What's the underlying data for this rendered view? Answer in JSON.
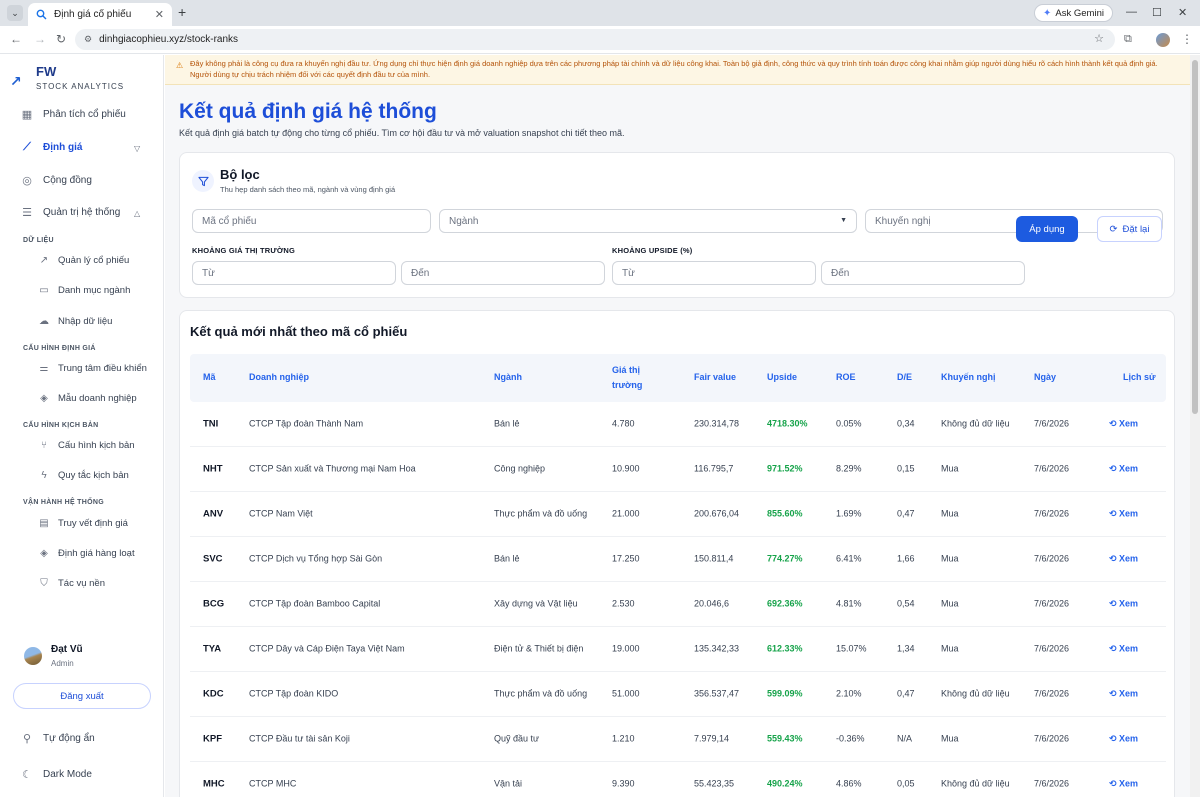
{
  "browser": {
    "tab_title": "Định giá cổ phiếu",
    "url": "dinhgiacophieu.xyz/stock-ranks",
    "ask_gemini": "Ask Gemini"
  },
  "sidebar": {
    "brand": "FW",
    "tagline": "STOCK ANALYTICS",
    "nav": {
      "phan_tich": "Phân tích cổ phiếu",
      "dinh_gia": "Định giá",
      "cong_dong": "Cộng đồng",
      "quan_tri": "Quản trị hệ thống"
    },
    "sections": {
      "du_lieu": "DỮ LIỆU",
      "cau_hinh_dinh_gia": "CẤU HÌNH ĐỊNH GIÁ",
      "cau_hinh_kich_ban": "CẤU HÌNH KỊCH BẢN",
      "van_hanh": "VẬN HÀNH HỆ THỐNG"
    },
    "sub": {
      "quan_ly_co_phieu": "Quản lý cổ phiếu",
      "danh_muc_nganh": "Danh mục ngành",
      "nhap_du_lieu": "Nhập dữ liệu",
      "trung_tam": "Trung tâm điều khiển",
      "mau_doanh_nghiep": "Mẫu doanh nghiệp",
      "cau_hinh_kb": "Cấu hình kịch bản",
      "quy_tac_kb": "Quy tắc kịch bản",
      "truy_vet": "Truy vết định giá",
      "hang_loat": "Định giá hàng loạt",
      "tac_vu_nen": "Tác vụ nền"
    },
    "user": {
      "name": "Đạt Vũ",
      "role": "Admin"
    },
    "logout": "Đăng xuất",
    "auto_hide": "Tự động ẩn",
    "dark_mode": "Dark Mode"
  },
  "disclaimer": "Đây không phải là công cụ đưa ra khuyến nghị đầu tư. Ứng dụng chỉ thực hiện định giá doanh nghiệp dựa trên các phương pháp tài chính và dữ liệu công khai. Toàn bộ giả định, công thức và quy trình tính toán được công khai nhằm giúp người dùng hiểu rõ cách hình thành kết quả định giá. Người dùng tự chịu trách nhiệm đối với các quyết định đầu tư của mình.",
  "page": {
    "title": "Kết quả định giá hệ thống",
    "subtitle": "Kết quả định giá batch tự động cho từng cổ phiếu. Tìm cơ hội đầu tư và mở valuation snapshot chi tiết theo mã."
  },
  "filter": {
    "title": "Bộ lọc",
    "subtitle": "Thu hẹp danh sách theo mã, ngành và vùng định giá",
    "ticker_placeholder": "Mã cổ phiếu",
    "industry_placeholder": "Ngành",
    "recommend_placeholder": "Khuyến nghị",
    "price_range_label": "KHOẢNG GIÁ THỊ TRƯỜNG",
    "upside_range_label": "KHOẢNG UPSIDE (%)",
    "from": "Từ",
    "to": "Đến",
    "apply": "Áp dụng",
    "reset": "Đặt lại"
  },
  "results": {
    "title": "Kết quả mới nhất theo mã cổ phiếu",
    "columns": {
      "ma": "Mã",
      "doanh_nghiep": "Doanh nghiệp",
      "nganh": "Ngành",
      "gia_1": "Giá thị",
      "gia_2": "trường",
      "fair": "Fair value",
      "upside": "Upside",
      "roe": "ROE",
      "de": "D/E",
      "khuyen_nghi": "Khuyến nghị",
      "ngay": "Ngày",
      "lich_su": "Lịch sử"
    },
    "view_label": "Xem",
    "rows": [
      {
        "ma": "TNI",
        "dn": "CTCP Tập đoàn Thành Nam",
        "nganh": "Bán lẻ",
        "gia": "4.780",
        "fair": "230.314,78",
        "upside": "4718.30%",
        "roe": "0.05%",
        "de": "0,34",
        "kn": "Không đủ dữ liệu",
        "ngay": "7/6/2026"
      },
      {
        "ma": "NHT",
        "dn": "CTCP Sản xuất và Thương mại Nam Hoa",
        "nganh": "Công nghiệp",
        "gia": "10.900",
        "fair": "116.795,7",
        "upside": "971.52%",
        "roe": "8.29%",
        "de": "0,15",
        "kn": "Mua",
        "ngay": "7/6/2026"
      },
      {
        "ma": "ANV",
        "dn": "CTCP Nam Việt",
        "nganh": "Thực phẩm và đồ uống",
        "gia": "21.000",
        "fair": "200.676,04",
        "upside": "855.60%",
        "roe": "1.69%",
        "de": "0,47",
        "kn": "Mua",
        "ngay": "7/6/2026"
      },
      {
        "ma": "SVC",
        "dn": "CTCP Dịch vụ Tổng hợp Sài Gòn",
        "nganh": "Bán lẻ",
        "gia": "17.250",
        "fair": "150.811,4",
        "upside": "774.27%",
        "roe": "6.41%",
        "de": "1,66",
        "kn": "Mua",
        "ngay": "7/6/2026"
      },
      {
        "ma": "BCG",
        "dn": "CTCP Tập đoàn Bamboo Capital",
        "nganh": "Xây dựng và Vật liệu",
        "gia": "2.530",
        "fair": "20.046,6",
        "upside": "692.36%",
        "roe": "4.81%",
        "de": "0,54",
        "kn": "Mua",
        "ngay": "7/6/2026"
      },
      {
        "ma": "TYA",
        "dn": "CTCP Dây và Cáp Điện Taya Việt Nam",
        "nganh": "Điện tử & Thiết bị điện",
        "gia": "19.000",
        "fair": "135.342,33",
        "upside": "612.33%",
        "roe": "15.07%",
        "de": "1,34",
        "kn": "Mua",
        "ngay": "7/6/2026"
      },
      {
        "ma": "KDC",
        "dn": "CTCP Tập đoàn KIDO",
        "nganh": "Thực phẩm và đồ uống",
        "gia": "51.000",
        "fair": "356.537,47",
        "upside": "599.09%",
        "roe": "2.10%",
        "de": "0,47",
        "kn": "Không đủ dữ liệu",
        "ngay": "7/6/2026"
      },
      {
        "ma": "KPF",
        "dn": "CTCP Đầu tư tài sản Koji",
        "nganh": "Quỹ đầu tư",
        "gia": "1.210",
        "fair": "7.979,14",
        "upside": "559.43%",
        "roe": "-0.36%",
        "de": "N/A",
        "kn": "Mua",
        "ngay": "7/6/2026"
      },
      {
        "ma": "MHC",
        "dn": "CTCP MHC",
        "nganh": "Vận tải",
        "gia": "9.390",
        "fair": "55.423,35",
        "upside": "490.24%",
        "roe": "4.86%",
        "de": "0,05",
        "kn": "Không đủ dữ liệu",
        "ngay": "7/6/2026"
      }
    ]
  }
}
